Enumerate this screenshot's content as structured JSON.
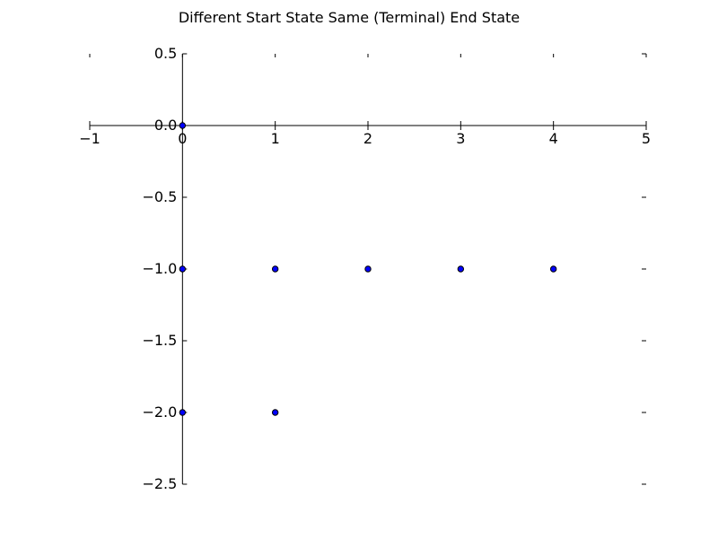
{
  "chart_data": {
    "type": "scatter",
    "title": "Different Start State Same (Terminal) End State",
    "xlabel": "",
    "ylabel": "",
    "xlim": [
      -1,
      5
    ],
    "ylim": [
      -2.5,
      0.5
    ],
    "xticks": [
      -1,
      0,
      1,
      2,
      3,
      4,
      5
    ],
    "xtick_labels": [
      "−1",
      "0",
      "1",
      "2",
      "3",
      "4",
      "5"
    ],
    "yticks": [
      0.5,
      0.0,
      -0.5,
      -1.0,
      -1.5,
      -2.0,
      -2.5
    ],
    "ytick_labels": [
      "0.5",
      "0.0",
      "−0.5",
      "−1.0",
      "−1.5",
      "−2.0",
      "−2.5"
    ],
    "grid": false,
    "legend": false,
    "points": [
      {
        "x": 0,
        "y": 0
      },
      {
        "x": 0,
        "y": -1
      },
      {
        "x": 1,
        "y": -1
      },
      {
        "x": 2,
        "y": -1
      },
      {
        "x": 3,
        "y": -1
      },
      {
        "x": 4,
        "y": -1
      },
      {
        "x": 0,
        "y": -2
      },
      {
        "x": 1,
        "y": -2
      }
    ],
    "marker_color": "#0000ff",
    "marker_edge": "#000000"
  }
}
